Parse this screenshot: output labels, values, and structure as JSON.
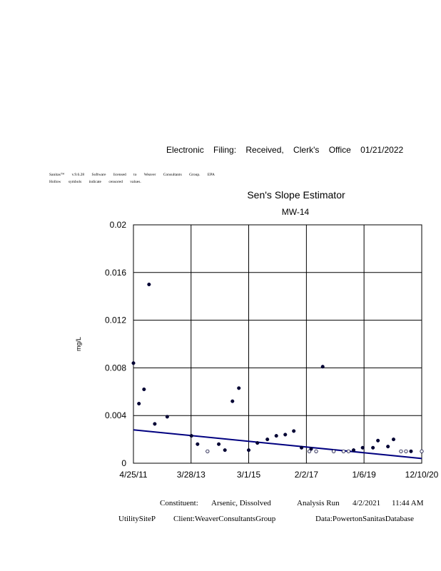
{
  "header": {
    "filing_line": "Electronic Filing: Received, Clerk's Office 01/21/2022",
    "software_line": "Sanitas™ v.9.6.28 Software licensed to Weaver Consultants Group. EPA",
    "hollow_line": "Hollow symbols indicate censored values."
  },
  "chart_data": {
    "type": "scatter",
    "title": "Sen's Slope Estimator",
    "subtitle": "MW-14",
    "xlabel": "",
    "ylabel": "mg/L",
    "x_ticks": [
      "4/25/11",
      "3/28/13",
      "3/1/15",
      "2/2/17",
      "1/6/19",
      "12/10/20"
    ],
    "x_tick_dates": [
      "2011-04-25",
      "2013-03-28",
      "2015-03-01",
      "2017-02-02",
      "2019-01-06",
      "2020-12-10"
    ],
    "xlim": [
      "2011-04-25",
      "2020-12-10"
    ],
    "y_ticks": [
      "0",
      "0.004",
      "0.008",
      "0.012",
      "0.016",
      "0.02"
    ],
    "ylim": [
      0,
      0.02
    ],
    "grid": true,
    "series": [
      {
        "marker": "filled",
        "points": [
          {
            "x": "2011-04-25",
            "y": 0.0084
          },
          {
            "x": "2011-07-01",
            "y": 0.005
          },
          {
            "x": "2011-09-01",
            "y": 0.0062
          },
          {
            "x": "2011-11-01",
            "y": 0.015
          },
          {
            "x": "2012-01-10",
            "y": 0.0033
          },
          {
            "x": "2012-06-10",
            "y": 0.0039
          },
          {
            "x": "2013-04-01",
            "y": 0.0023
          },
          {
            "x": "2013-06-15",
            "y": 0.0016
          },
          {
            "x": "2014-03-01",
            "y": 0.0016
          },
          {
            "x": "2014-05-15",
            "y": 0.0011
          },
          {
            "x": "2014-08-15",
            "y": 0.0052
          },
          {
            "x": "2014-11-01",
            "y": 0.0063
          },
          {
            "x": "2015-03-01",
            "y": 0.0011
          },
          {
            "x": "2015-06-15",
            "y": 0.0017
          },
          {
            "x": "2015-10-15",
            "y": 0.002
          },
          {
            "x": "2016-02-01",
            "y": 0.0023
          },
          {
            "x": "2016-05-20",
            "y": 0.0024
          },
          {
            "x": "2016-09-01",
            "y": 0.0027
          },
          {
            "x": "2016-12-05",
            "y": 0.0013
          },
          {
            "x": "2017-04-01",
            "y": 0.0012
          },
          {
            "x": "2017-08-20",
            "y": 0.0081
          },
          {
            "x": "2018-09-01",
            "y": 0.0011
          },
          {
            "x": "2018-12-20",
            "y": 0.0013
          },
          {
            "x": "2019-04-25",
            "y": 0.0013
          },
          {
            "x": "2019-06-25",
            "y": 0.0019
          },
          {
            "x": "2019-10-25",
            "y": 0.0014
          },
          {
            "x": "2020-01-01",
            "y": 0.002
          },
          {
            "x": "2020-08-01",
            "y": 0.001
          }
        ]
      },
      {
        "marker": "hollow",
        "points": [
          {
            "x": "2013-10-15",
            "y": 0.001
          },
          {
            "x": "2017-03-10",
            "y": 0.001
          },
          {
            "x": "2017-06-01",
            "y": 0.001
          },
          {
            "x": "2018-01-01",
            "y": 0.001
          },
          {
            "x": "2018-05-01",
            "y": 0.001
          },
          {
            "x": "2018-07-01",
            "y": 0.001
          },
          {
            "x": "2020-04-01",
            "y": 0.001
          },
          {
            "x": "2020-06-01",
            "y": 0.001
          },
          {
            "x": "2020-12-10",
            "y": 0.001
          }
        ]
      }
    ],
    "trend_line": {
      "x": [
        "2011-04-25",
        "2020-12-10"
      ],
      "y": [
        0.0028,
        0.0004
      ]
    },
    "colors": {
      "points": "#000033",
      "trend": "#000080",
      "grid": "#000000"
    }
  },
  "footer": {
    "constituent_label": "Constituent:",
    "constituent_value": "Arsenic, Dissolved",
    "analysis_label": "Analysis Run",
    "run_date": "4/2/2021",
    "run_time": "11:44 AM",
    "site": "UtilitySiteP",
    "client": "Client:WeaverConsultantsGroup",
    "data": "Data:PowertonSanitasDatabase"
  }
}
